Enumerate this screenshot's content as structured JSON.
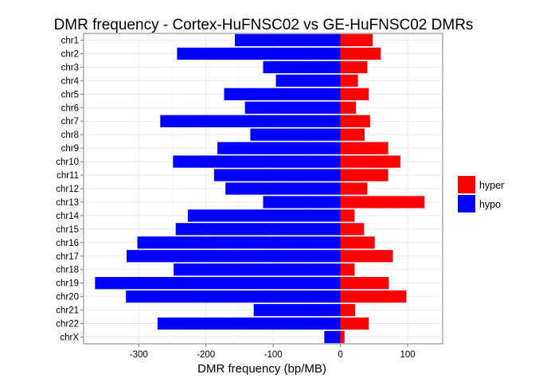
{
  "chart_data": {
    "type": "bar",
    "orientation": "horizontal",
    "title": "DMR frequency - Cortex-HuFNSC02 vs GE-HuFNSC02 DMRs",
    "xlabel": "DMR frequency (bp/MB)",
    "ylabel": "",
    "xlim": [
      -382,
      152
    ],
    "xticks": [
      -300,
      -200,
      -100,
      0,
      100
    ],
    "grid": true,
    "legend_position": "right",
    "categories": [
      "chr1",
      "chr2",
      "chr3",
      "chr4",
      "chr5",
      "chr6",
      "chr7",
      "chr8",
      "chr9",
      "chr10",
      "chr11",
      "chr12",
      "chr13",
      "chr14",
      "chr15",
      "chr16",
      "chr17",
      "chr18",
      "chr19",
      "chr20",
      "chr21",
      "chr22",
      "chrX"
    ],
    "series": [
      {
        "name": "hyper",
        "color": "#FF0000",
        "values": [
          48,
          60,
          40,
          26,
          42,
          23,
          44,
          36,
          71,
          89,
          71,
          40,
          125,
          21,
          35,
          51,
          78,
          21,
          72,
          98,
          22,
          42,
          6
        ]
      },
      {
        "name": "hypo",
        "color": "#0000FF",
        "values": [
          -157,
          -243,
          -115,
          -96,
          -173,
          -142,
          -268,
          -134,
          -183,
          -249,
          -188,
          -171,
          -115,
          -227,
          -245,
          -302,
          -318,
          -248,
          -365,
          -319,
          -129,
          -272,
          -24
        ]
      }
    ]
  }
}
